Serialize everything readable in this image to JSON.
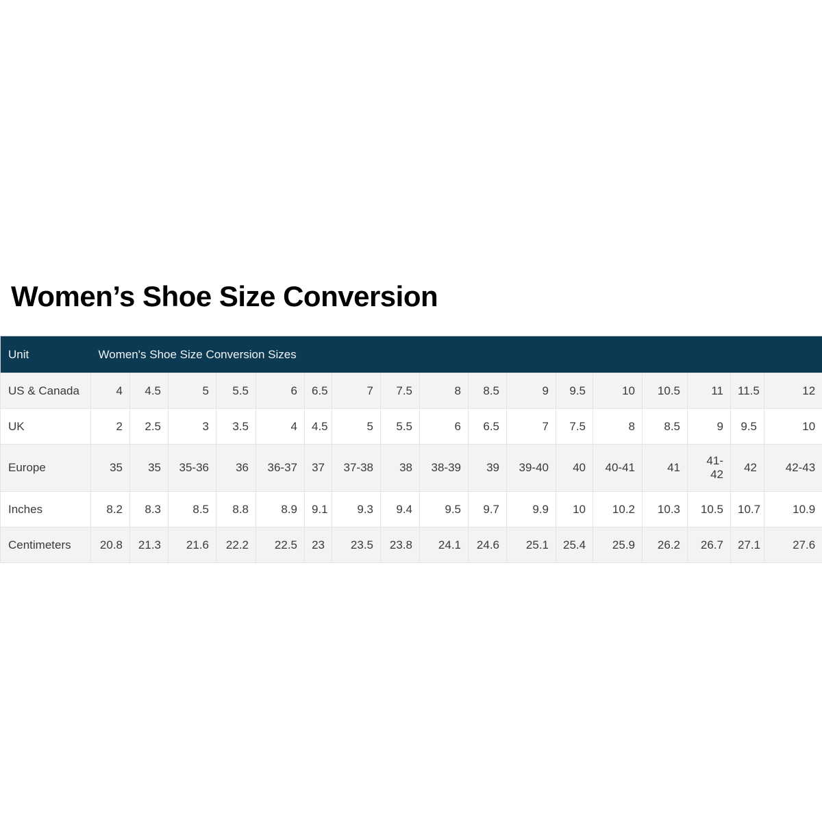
{
  "page": {
    "title": "Women’s Shoe Size Conversion"
  },
  "table": {
    "header": {
      "unit_label": "Unit",
      "sizes_label": "Women's Shoe Size Conversion Sizes"
    },
    "rows": [
      {
        "label": "US & Canada",
        "values": [
          "4",
          "4.5",
          "5",
          "5.5",
          "6",
          "6.5",
          "7",
          "7.5",
          "8",
          "8.5",
          "9",
          "9.5",
          "10",
          "10.5",
          "11",
          "11.5",
          "12"
        ]
      },
      {
        "label": "UK",
        "values": [
          "2",
          "2.5",
          "3",
          "3.5",
          "4",
          "4.5",
          "5",
          "5.5",
          "6",
          "6.5",
          "7",
          "7.5",
          "8",
          "8.5",
          "9",
          "9.5",
          "10"
        ]
      },
      {
        "label": "Europe",
        "values": [
          "35",
          "35",
          "35-36",
          "36",
          "36-37",
          "37",
          "37-38",
          "38",
          "38-39",
          "39",
          "39-40",
          "40",
          "40-41",
          "41",
          "41-42",
          "42",
          "42-43"
        ]
      },
      {
        "label": "Inches",
        "values": [
          "8.2",
          "8.3",
          "8.5",
          "8.8",
          "8.9",
          "9.1",
          "9.3",
          "9.4",
          "9.5",
          "9.7",
          "9.9",
          "10",
          "10.2",
          "10.3",
          "10.5",
          "10.7",
          "10.9"
        ]
      },
      {
        "label": "Centimeters",
        "values": [
          "20.8",
          "21.3",
          "21.6",
          "22.2",
          "22.5",
          "23",
          "23.5",
          "23.8",
          "24.1",
          "24.6",
          "25.1",
          "25.4",
          "25.9",
          "26.2",
          "26.7",
          "27.1",
          "27.6"
        ]
      }
    ]
  },
  "colors": {
    "header_bg": "#0c3a52",
    "header_text": "#f1f3f4",
    "stripe_bg": "#f3f3f3",
    "row_bg": "#ffffff",
    "border": "#e4e4e4",
    "body_text": "#3a3a3a",
    "title_text": "#000000"
  }
}
